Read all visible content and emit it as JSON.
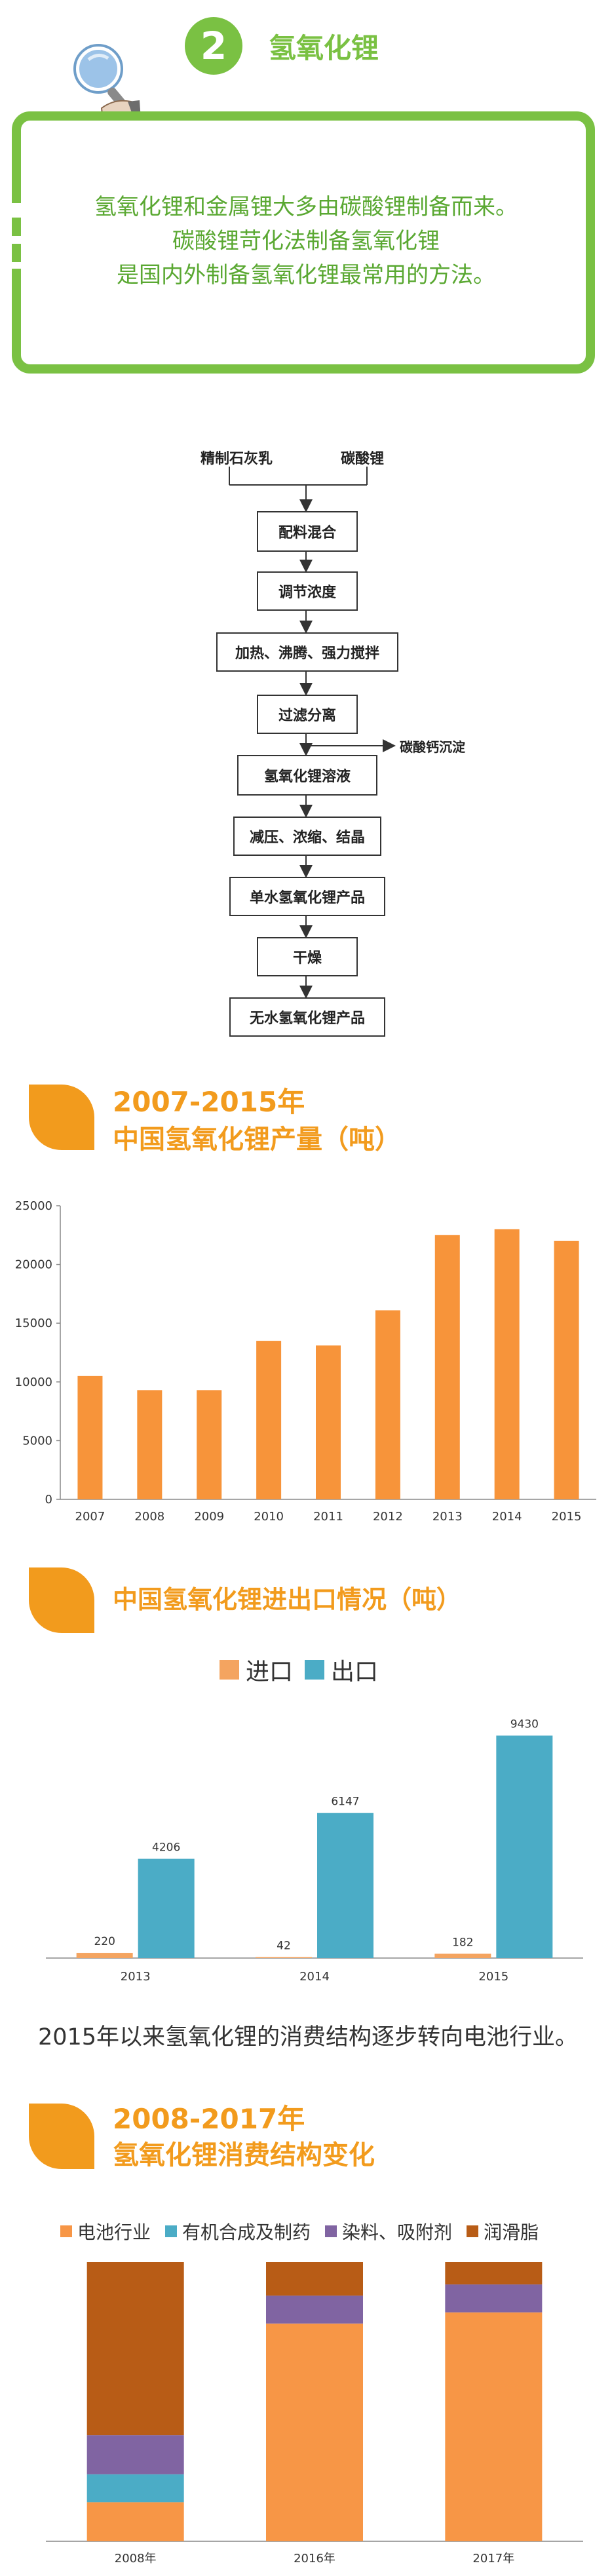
{
  "section2": {
    "number": "2",
    "title": "氢氧化锂",
    "paragraph_lines": [
      "氢氧化锂和金属锂大多由碳酸锂制备而来。",
      "碳酸锂苛化法制备氢氧化锂",
      "是国内外制备氢氧化锂最常用的方法。"
    ],
    "accent_color": "#7ac143"
  },
  "flowchart": {
    "inputs": [
      "精制石灰乳",
      "碳酸锂"
    ],
    "steps": [
      "配料混合",
      "调节浓度",
      "加热、沸腾、强力搅拌",
      "过滤分离",
      "氢氧化锂溶液",
      "减压、浓缩、结晶",
      "单水氢氧化锂产品",
      "干燥",
      "无水氢氧化锂产品"
    ],
    "side_output": "碳酸钙沉淀"
  },
  "note_text": "2015年以来氢氧化锂的消费结构逐步转向电池行业。",
  "chart_data": [
    {
      "type": "bar",
      "title": "2007-2015年",
      "subtitle": "中国氢氧化锂产量（吨）",
      "categories": [
        "2007",
        "2008",
        "2009",
        "2010",
        "2011",
        "2012",
        "2013",
        "2014",
        "2015"
      ],
      "values": [
        10500,
        9300,
        9300,
        13500,
        13100,
        16100,
        22500,
        23000,
        22000
      ],
      "ylim": [
        0,
        25000
      ],
      "yticks": [
        "0",
        "5000",
        "10000",
        "15000",
        "20000",
        "25000"
      ],
      "xlabel": "",
      "ylabel": "",
      "grid": false,
      "color": "#f7943a"
    },
    {
      "type": "bar",
      "title": "中国氢氧化锂进出口情况（吨）",
      "categories": [
        "2013",
        "2014",
        "2015"
      ],
      "series": [
        {
          "name": "进口",
          "values": [
            220,
            42,
            182
          ],
          "color": "#f4a460"
        },
        {
          "name": "出口",
          "values": [
            4206,
            6147,
            9430
          ],
          "color": "#4bacc6"
        }
      ],
      "data_labels": [
        [
          "220",
          "42",
          "182"
        ],
        [
          "4206",
          "6147",
          "9430"
        ]
      ],
      "ylim": [
        0,
        10000
      ],
      "legend": "top-center",
      "grid": false
    },
    {
      "type": "bar",
      "stacked": true,
      "title": "2008-2017年",
      "subtitle": "氢氧化锂消费结构变化",
      "categories": [
        "2008年",
        "2016年",
        "2017年"
      ],
      "series": [
        {
          "name": "电池行业",
          "values": [
            14,
            78,
            82
          ],
          "color": "#f79646"
        },
        {
          "name": "有机合成及制药",
          "values": [
            10,
            0,
            0
          ],
          "color": "#4bacc6"
        },
        {
          "name": "染料、吸附剂",
          "values": [
            14,
            10,
            10
          ],
          "color": "#8064a2"
        },
        {
          "name": "润滑脂",
          "values": [
            62,
            12,
            8
          ],
          "color": "#b85c16"
        }
      ],
      "ylim": [
        0,
        100
      ],
      "legend": "top",
      "grid": false
    }
  ]
}
